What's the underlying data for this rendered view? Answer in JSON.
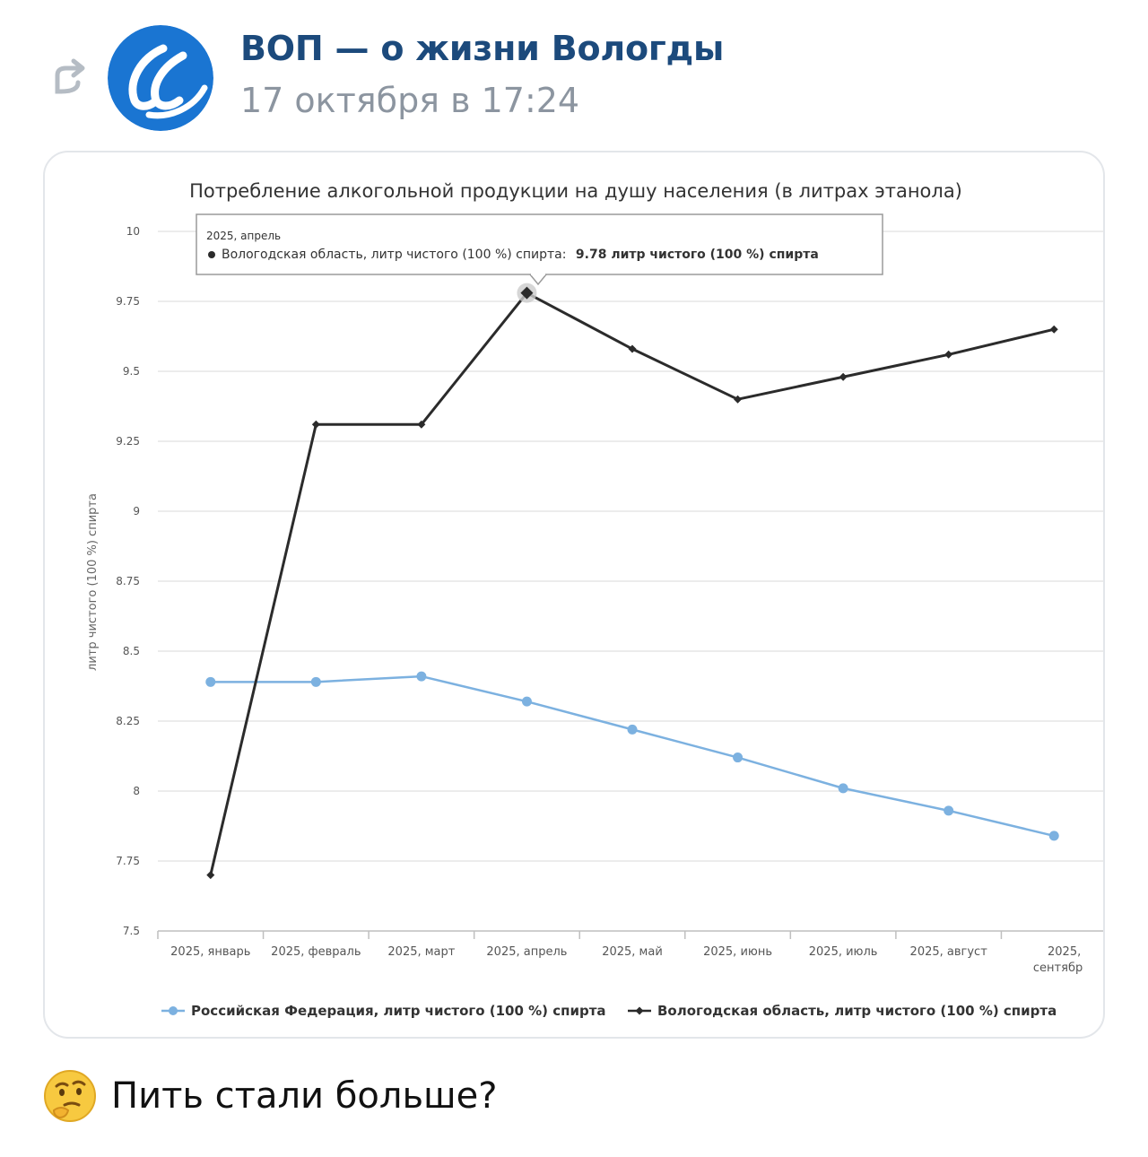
{
  "post": {
    "author": "ВОП — о жизни Вологды",
    "date": "17 октября в 17:24",
    "text": "Пить стали больше?",
    "emoji_icon": "thinking-face-icon",
    "repost_icon": "repost-arrow-icon",
    "avatar_icon": "community-logo-icon"
  },
  "tooltip": {
    "title": "2025, апрель",
    "series_label": "Вологодская область, литр чистого (100 %) спирта:",
    "value_label": "9.78 литр чистого (100 %) спирта"
  },
  "colors": {
    "author": "#1c4a7c",
    "date": "#8c95a0",
    "series_rf": "#7cb1e0",
    "series_vologda": "#2b2b2b",
    "avatar": "#1a75d2"
  },
  "chart_data": {
    "type": "line",
    "title": "Потребление алкогольной продукции на душу населения (в литрах этанола)",
    "ylabel": "литр чистого (100 %) спирта",
    "xlabel": "",
    "ylim": [
      7.5,
      10
    ],
    "yticks": [
      "10",
      "9.75",
      "9.5",
      "9.25",
      "9",
      "8.75",
      "8.5",
      "8.25",
      "8",
      "7.75",
      "7.5"
    ],
    "categories": [
      "2025, январь",
      "2025, февраль",
      "2025, март",
      "2025, апрель",
      "2025, май",
      "2025, июнь",
      "2025, июль",
      "2025, август",
      "2025, сентябр"
    ],
    "grid": true,
    "legend_position": "bottom",
    "series": [
      {
        "name": "Российская Федерация, литр чистого (100 %) спирта",
        "color": "#7cb1e0",
        "marker": "circle",
        "values": [
          8.39,
          8.39,
          8.41,
          8.32,
          8.22,
          8.12,
          8.01,
          7.93,
          7.84
        ]
      },
      {
        "name": "Вологодская область, литр чистого (100 %) спирта",
        "color": "#2b2b2b",
        "marker": "diamond",
        "values": [
          7.7,
          9.31,
          9.31,
          9.78,
          9.58,
          9.4,
          9.48,
          9.56,
          9.65
        ]
      }
    ]
  }
}
